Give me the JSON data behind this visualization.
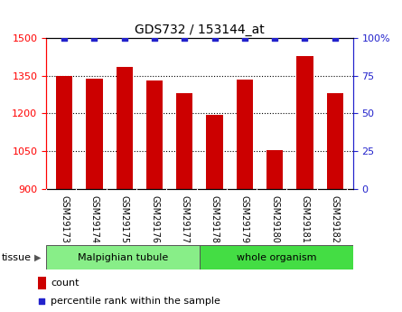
{
  "title": "GDS732 / 153144_at",
  "samples": [
    "GSM29173",
    "GSM29174",
    "GSM29175",
    "GSM29176",
    "GSM29177",
    "GSM29178",
    "GSM29179",
    "GSM29180",
    "GSM29181",
    "GSM29182"
  ],
  "counts": [
    1350,
    1340,
    1385,
    1330,
    1280,
    1195,
    1335,
    1055,
    1430,
    1280
  ],
  "percentiles": [
    100,
    100,
    100,
    100,
    100,
    100,
    100,
    100,
    100,
    100
  ],
  "bar_color": "#cc0000",
  "dot_color": "#2222cc",
  "ylim_left": [
    900,
    1500
  ],
  "ylim_right": [
    0,
    100
  ],
  "yticks_left": [
    900,
    1050,
    1200,
    1350,
    1500
  ],
  "yticks_right": [
    0,
    25,
    50,
    75,
    100
  ],
  "grid_lines": [
    1050,
    1200,
    1350
  ],
  "tissue_groups": [
    {
      "label": "Malpighian tubule",
      "start": 0,
      "end": 5,
      "color": "#88ee88"
    },
    {
      "label": "whole organism",
      "start": 5,
      "end": 10,
      "color": "#44dd44"
    }
  ],
  "tissue_label": "tissue",
  "legend_count_label": "count",
  "legend_percentile_label": "percentile rank within the sample",
  "tick_label_area_color": "#cccccc",
  "bar_width": 0.55,
  "dot_size": 25
}
